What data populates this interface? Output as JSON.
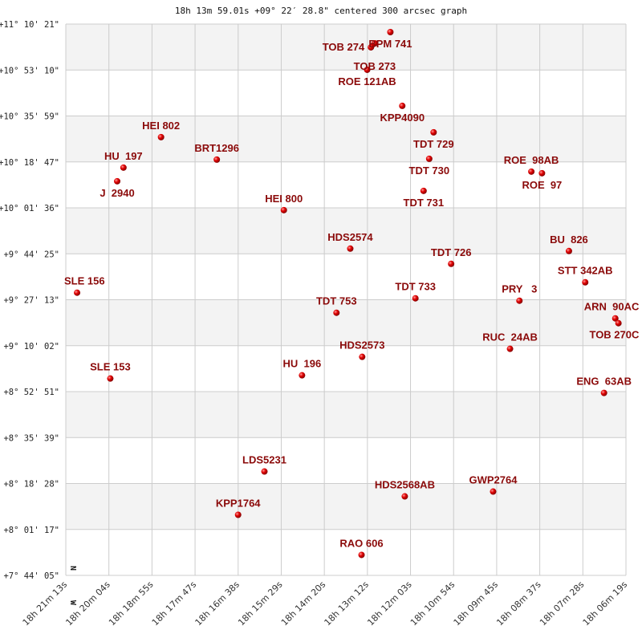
{
  "chart_data": {
    "type": "scatter",
    "title": "18h 13m 59.01s +09° 22′ 28.8\" centered 300 arcsec graph",
    "xlim": [
      "18:21:13",
      "18:06:19"
    ],
    "ylim": [
      "+7:44:05",
      "+11:10:21"
    ],
    "grid": true,
    "x_ticks": [
      "18h 21m 13s",
      "18h 20m 04s",
      "18h 18m 55s",
      "18h 17m 47s",
      "18h 16m 38s",
      "18h 15m 29s",
      "18h 14m 20s",
      "18h 13m 12s",
      "18h 12m 03s",
      "18h 10m 54s",
      "18h 09m 45s",
      "18h 08m 37s",
      "18h 07m 28s",
      "18h 06m 19s"
    ],
    "y_ticks": [
      "+11° 10' 21\"",
      "+10° 53' 10\"",
      "+10° 35' 59\"",
      "+10° 18' 47\"",
      "+10° 01' 36\"",
      "+9° 44' 25\"",
      "+9° 27' 13\"",
      "+9° 10' 02\"",
      "+8° 52' 51\"",
      "+8° 35' 39\"",
      "+8° 18' 28\"",
      "+8° 01' 17\"",
      "+7° 44' 05\""
    ],
    "direction_labels": {
      "north": "N",
      "west": "W"
    },
    "colors": {
      "label": "#8b0a0a",
      "point": "#dd0000",
      "band": "#f3f3f3",
      "grid": "#cccccc"
    },
    "points": [
      {
        "name": "BPM 741",
        "ra": "18:12:35",
        "dec": "+11:07:21"
      },
      {
        "name": "TOB 273",
        "ra": "18:13:00",
        "dec": "+11:03:09"
      },
      {
        "name": "TOB 274",
        "ra": "18:13:06",
        "dec": "+11:01:39"
      },
      {
        "name": "ROE 121AB",
        "ra": "18:13:12",
        "dec": "+10:53:15"
      },
      {
        "name": "KPP4090",
        "ra": "18:12:16",
        "dec": "+10:39:45"
      },
      {
        "name": "TDT 729",
        "ra": "18:11:26",
        "dec": "+10:29:51"
      },
      {
        "name": "TDT 730",
        "ra": "18:11:33",
        "dec": "+10:19:57"
      },
      {
        "name": "TDT 731",
        "ra": "18:11:42",
        "dec": "+10:07:57"
      },
      {
        "name": "HEI 802",
        "ra": "18:18:41",
        "dec": "+10:28:03"
      },
      {
        "name": "HU  197",
        "ra": "18:19:41",
        "dec": "+10:16:39"
      },
      {
        "name": "J  2940",
        "ra": "18:19:51",
        "dec": "+10:11:33"
      },
      {
        "name": "BRT1296",
        "ra": "18:17:12",
        "dec": "+10:19:39"
      },
      {
        "name": "HEI 800",
        "ra": "18:15:25",
        "dec": "+10:00:45"
      },
      {
        "name": "ROE  98AB",
        "ra": "18:08:50",
        "dec": "+10:15:09"
      },
      {
        "name": "ROE  97",
        "ra": "18:08:33",
        "dec": "+10:14:33"
      },
      {
        "name": "HDS2574",
        "ra": "18:13:39",
        "dec": "+9:46:21"
      },
      {
        "name": "TDT 726",
        "ra": "18:10:58",
        "dec": "+9:40:39"
      },
      {
        "name": "BU  826",
        "ra": "18:07:50",
        "dec": "+9:45:27"
      },
      {
        "name": "STT 342AB",
        "ra": "18:07:24",
        "dec": "+9:33:45"
      },
      {
        "name": "SLE 156",
        "ra": "18:20:55",
        "dec": "+9:29:51"
      },
      {
        "name": "TDT 733",
        "ra": "18:11:55",
        "dec": "+9:27:45"
      },
      {
        "name": "PRY   3",
        "ra": "18:09:09",
        "dec": "+9:26:51"
      },
      {
        "name": "TDT 753",
        "ra": "18:14:01",
        "dec": "+9:22:21"
      },
      {
        "name": "ARN  90AC",
        "ra": "18:06:36",
        "dec": "+9:20:15"
      },
      {
        "name": "TOB 270C",
        "ra": "18:06:31",
        "dec": "+9:18:27"
      },
      {
        "name": "RUC  24AB",
        "ra": "18:09:24",
        "dec": "+9:08:51"
      },
      {
        "name": "HDS2573",
        "ra": "18:13:20",
        "dec": "+9:05:51"
      },
      {
        "name": "HU  196",
        "ra": "18:14:56",
        "dec": "+8:58:57"
      },
      {
        "name": "SLE 153",
        "ra": "18:20:02",
        "dec": "+8:57:45"
      },
      {
        "name": "ENG  63AB",
        "ra": "18:06:54",
        "dec": "+8:52:21"
      },
      {
        "name": "LDS5231",
        "ra": "18:15:56",
        "dec": "+8:22:57"
      },
      {
        "name": "HDS2568AB",
        "ra": "18:12:12",
        "dec": "+8:13:39"
      },
      {
        "name": "GWP2764",
        "ra": "18:09:51",
        "dec": "+8:15:27"
      },
      {
        "name": "KPP1764",
        "ra": "18:16:38",
        "dec": "+8:06:45"
      },
      {
        "name": "RAO 606",
        "ra": "18:13:21",
        "dec": "+7:51:45"
      }
    ]
  }
}
